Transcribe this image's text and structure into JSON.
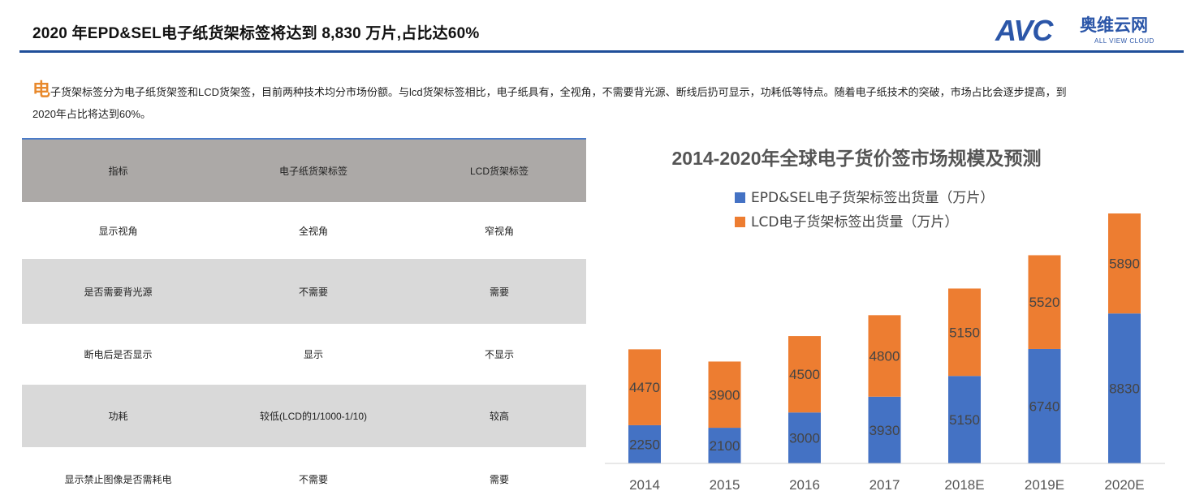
{
  "header": {
    "title": "2020 年EPD&SEL电子纸货架标签将达到 8,830 万片,占比达60%",
    "logo_mark": "AVC",
    "logo_cn": "奥维云网",
    "logo_en": "ALL VIEW CLOUD"
  },
  "intro": {
    "dropcap": "电",
    "line1_rest": "子货架标签分为电子纸货架签和LCD货架签，目前两种技术均分市场份额。与lcd货架标签相比，电子纸具有，全视角，不需要背光源、断线后扔可显示，功耗低等特点。随着电子纸技术的突破，市场占比会逐步提高，到",
    "line2": "2020年占比将达到60%。"
  },
  "table": {
    "headers": [
      "指标",
      "电子纸货架标签",
      "LCD货架标签"
    ],
    "rows": [
      [
        "显示视角",
        "全视角",
        "窄视角"
      ],
      [
        "是否需要背光源",
        "不需要",
        "需要"
      ],
      [
        "断电后是否显示",
        "显示",
        "不显示"
      ],
      [
        "功耗",
        "较低(LCD的1/1000-1/10)",
        "较高"
      ],
      [
        "显示禁止图像是否需耗电",
        "不需要",
        "需要"
      ]
    ]
  },
  "chart_data": {
    "type": "bar",
    "stacked": true,
    "title": "2014-2020年全球电子货价签市场规模及预测",
    "categories": [
      "2014",
      "2015",
      "2016",
      "2017",
      "2018E",
      "2019E",
      "2020E"
    ],
    "series": [
      {
        "name": "EPD&SEL电子货架标签出货量（万片）",
        "color": "#4472c4",
        "values": [
          2250,
          2100,
          3000,
          3930,
          5150,
          6740,
          8830
        ]
      },
      {
        "name": "LCD电子货架标签出货量（万片）",
        "color": "#ed7d31",
        "values": [
          4470,
          3900,
          4500,
          4800,
          5150,
          5520,
          5890
        ]
      }
    ],
    "legend_position": "top-left",
    "grid": false,
    "y_axis_visible": false,
    "ylim": [
      0,
      14720
    ]
  }
}
